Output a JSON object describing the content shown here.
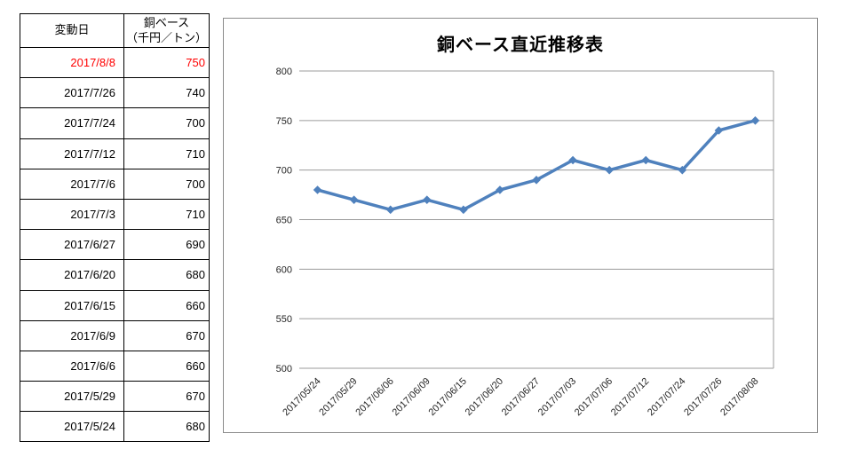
{
  "table": {
    "header": {
      "date": "変動日",
      "price_line1": "銅ベース",
      "price_line2": "（千円／トン）"
    },
    "highlight_color": "#ff0000",
    "rows": [
      {
        "date": "2017/8/8",
        "value": "750",
        "highlight": true
      },
      {
        "date": "2017/7/26",
        "value": "740",
        "highlight": false
      },
      {
        "date": "2017/7/24",
        "value": "700",
        "highlight": false
      },
      {
        "date": "2017/7/12",
        "value": "710",
        "highlight": false
      },
      {
        "date": "2017/7/6",
        "value": "700",
        "highlight": false
      },
      {
        "date": "2017/7/3",
        "value": "710",
        "highlight": false
      },
      {
        "date": "2017/6/27",
        "value": "690",
        "highlight": false
      },
      {
        "date": "2017/6/20",
        "value": "680",
        "highlight": false
      },
      {
        "date": "2017/6/15",
        "value": "660",
        "highlight": false
      },
      {
        "date": "2017/6/9",
        "value": "670",
        "highlight": false
      },
      {
        "date": "2017/6/6",
        "value": "660",
        "highlight": false
      },
      {
        "date": "2017/5/29",
        "value": "670",
        "highlight": false
      },
      {
        "date": "2017/5/24",
        "value": "680",
        "highlight": false
      }
    ]
  },
  "chart_data": {
    "type": "line",
    "title": "銅ベース直近推移表",
    "categories": [
      "2017/05/24",
      "2017/05/29",
      "2017/06/06",
      "2017/06/09",
      "2017/06/15",
      "2017/06/20",
      "2017/06/27",
      "2017/07/03",
      "2017/07/06",
      "2017/07/12",
      "2017/07/24",
      "2017/07/26",
      "2017/08/08"
    ],
    "values": [
      680,
      670,
      660,
      670,
      660,
      680,
      690,
      710,
      700,
      710,
      700,
      740,
      750
    ],
    "xlabel": "",
    "ylabel": "",
    "ylim": [
      500,
      800
    ],
    "ytick_interval": 50,
    "grid": true,
    "legend_position": "none",
    "marker": "diamond",
    "x_label_rotation_deg": 45,
    "line_color": "#4F81BD",
    "gridline_color": "#9b9b9b",
    "plot_border_color": "#9b9b9b",
    "axis_label_color": "#262626"
  }
}
